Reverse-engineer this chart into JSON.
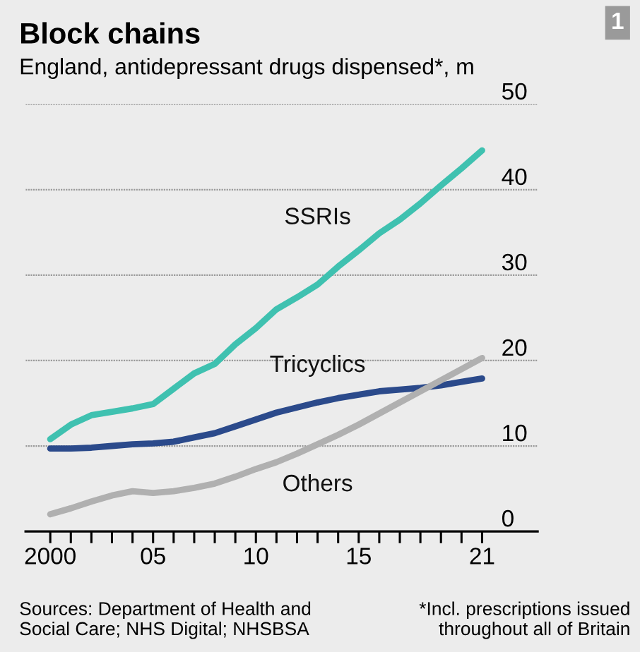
{
  "chart_data": {
    "type": "line",
    "title": "Block chains",
    "subtitle": "England, antidepressant drugs dispensed*, m",
    "x": [
      2000,
      2001,
      2002,
      2003,
      2004,
      2005,
      2006,
      2007,
      2008,
      2009,
      2010,
      2011,
      2012,
      2013,
      2014,
      2015,
      2016,
      2017,
      2018,
      2019,
      2020,
      2021
    ],
    "series": [
      {
        "name": "SSRIs",
        "color": "#3fc1b0",
        "values": [
          10.8,
          12.5,
          13.6,
          14.0,
          14.4,
          14.9,
          16.7,
          18.5,
          19.6,
          21.9,
          23.8,
          26.0,
          27.4,
          28.9,
          31.0,
          32.9,
          34.9,
          36.5,
          38.4,
          40.5,
          42.5,
          44.6
        ]
      },
      {
        "name": "Tricyclics",
        "color": "#2b4a8b",
        "values": [
          9.7,
          9.7,
          9.8,
          10.0,
          10.2,
          10.3,
          10.5,
          11.0,
          11.5,
          12.3,
          13.1,
          13.9,
          14.5,
          15.1,
          15.6,
          16.0,
          16.4,
          16.6,
          16.8,
          17.1,
          17.5,
          17.9
        ]
      },
      {
        "name": "Others",
        "color": "#b0b0b0",
        "values": [
          2.0,
          2.7,
          3.5,
          4.2,
          4.7,
          4.5,
          4.7,
          5.1,
          5.6,
          6.4,
          7.3,
          8.1,
          9.1,
          10.2,
          11.3,
          12.5,
          13.8,
          15.1,
          16.4,
          17.7,
          19.0,
          20.3
        ]
      }
    ],
    "xlim": [
      1998.8,
      2023.7
    ],
    "ylim": [
      0,
      50
    ],
    "xticks": [
      2000,
      {
        "value": 2001,
        "label": null
      },
      {
        "value": 2002,
        "label": null
      },
      {
        "value": 2003,
        "label": null
      },
      {
        "value": 2004,
        "label": null
      },
      {
        "value": 2005,
        "label": "05"
      },
      {
        "value": 2006,
        "label": null
      },
      {
        "value": 2007,
        "label": null
      },
      {
        "value": 2008,
        "label": null
      },
      {
        "value": 2009,
        "label": null
      },
      {
        "value": 2010,
        "label": "10"
      },
      {
        "value": 2011,
        "label": null
      },
      {
        "value": 2012,
        "label": null
      },
      {
        "value": 2013,
        "label": null
      },
      {
        "value": 2014,
        "label": null
      },
      {
        "value": 2015,
        "label": "15"
      },
      {
        "value": 2016,
        "label": null
      },
      {
        "value": 2017,
        "label": null
      },
      {
        "value": 2018,
        "label": null
      },
      {
        "value": 2019,
        "label": null
      },
      {
        "value": 2020,
        "label": null
      },
      {
        "value": 2021,
        "label": "21"
      }
    ],
    "yticks": [
      0,
      10,
      20,
      30,
      40,
      50
    ],
    "grid": "y",
    "legend": false,
    "marker": "none",
    "line_style": "solid",
    "annotations": [
      "1",
      "Sources: Department of Health and\nSocial Care; NHS Digital; NHSBSA",
      "*Incl. prescriptions issued\nthroughout all of Britain"
    ]
  }
}
